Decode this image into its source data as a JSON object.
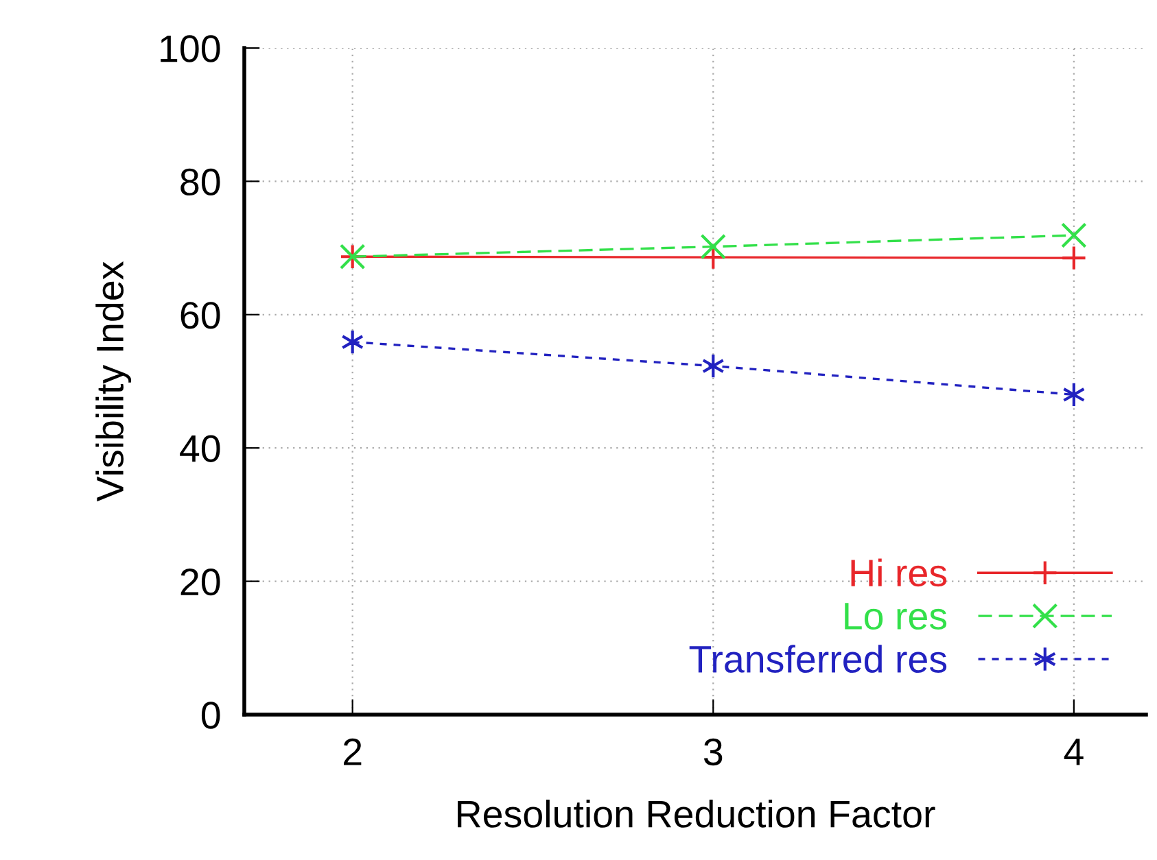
{
  "chart_data": {
    "type": "line",
    "xlabel": "Resolution Reduction Factor",
    "ylabel": "Visibility Index",
    "x": [
      2,
      3,
      4
    ],
    "xlim": [
      1.7,
      4.2
    ],
    "xticks": [
      2,
      3,
      4
    ],
    "ylim": [
      0,
      100
    ],
    "yticks": [
      0,
      20,
      40,
      60,
      80,
      100
    ],
    "grid": true,
    "legend": "bottom right",
    "marker": "cross",
    "series": [
      {
        "name": "Hi res",
        "color": "#e8262a",
        "values": [
          68.7,
          68.6,
          68.5
        ],
        "line_style": "solid"
      },
      {
        "name": "Lo res",
        "color": "#33e04a",
        "values": [
          68.7,
          70.2,
          71.9
        ],
        "line_style": "dashed"
      },
      {
        "name": "Transferred res",
        "color": "#2222c0",
        "values": [
          55.9,
          52.3,
          48.0
        ],
        "line_style": "dotted"
      }
    ]
  }
}
